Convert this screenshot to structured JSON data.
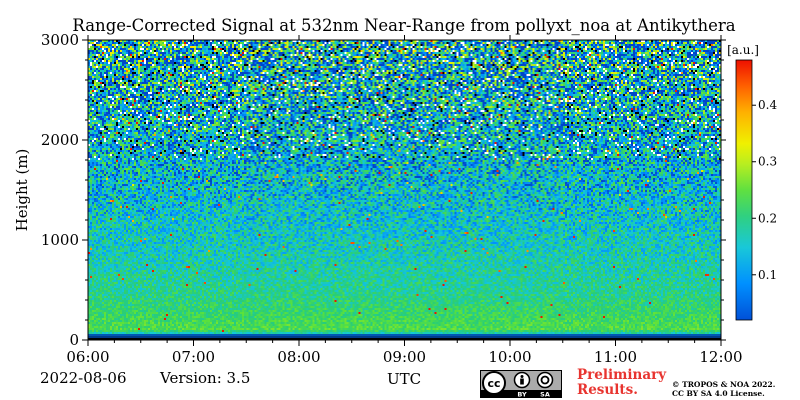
{
  "chart_data": {
    "type": "heatmap",
    "title": "Range-Corrected Signal at 532nm Near-Range from pollyxt_noa at Antikythera",
    "xlabel": "UTC",
    "ylabel": "Height (m)",
    "x_ticks": [
      "06:00",
      "07:00",
      "08:00",
      "09:00",
      "10:00",
      "11:00",
      "12:00"
    ],
    "x_range": [
      "06:00",
      "12:00"
    ],
    "y_ticks": [
      0,
      1000,
      2000,
      3000
    ],
    "ylim": [
      0,
      3000
    ],
    "colorbar": {
      "label": "[a.u.]",
      "ticks": [
        0.1,
        0.2,
        0.3,
        0.4
      ],
      "range": [
        0.02,
        0.48
      ],
      "colormap": "jet"
    },
    "grid": false,
    "description_profile": [
      {
        "height_m": 0,
        "typical_value": 0.0
      },
      {
        "height_m": 100,
        "typical_value": 0.23
      },
      {
        "height_m": 500,
        "typical_value": 0.18
      },
      {
        "height_m": 1000,
        "typical_value": 0.15
      },
      {
        "height_m": 1500,
        "typical_value": 0.13
      },
      {
        "height_m": 2000,
        "typical_value": 0.12
      },
      {
        "height_m": 3000,
        "typical_value": 0.12
      }
    ]
  },
  "footer": {
    "date": "2022-08-06",
    "version": "Version: 3.5",
    "preliminary_line1": "Preliminary",
    "preliminary_line2": "Results.",
    "copyright_line1": "© TROPOS & NOA 2022.",
    "copyright_line2": "CC BY SA 4.0 License.",
    "cc_by": "BY",
    "cc_sa": "SA"
  }
}
